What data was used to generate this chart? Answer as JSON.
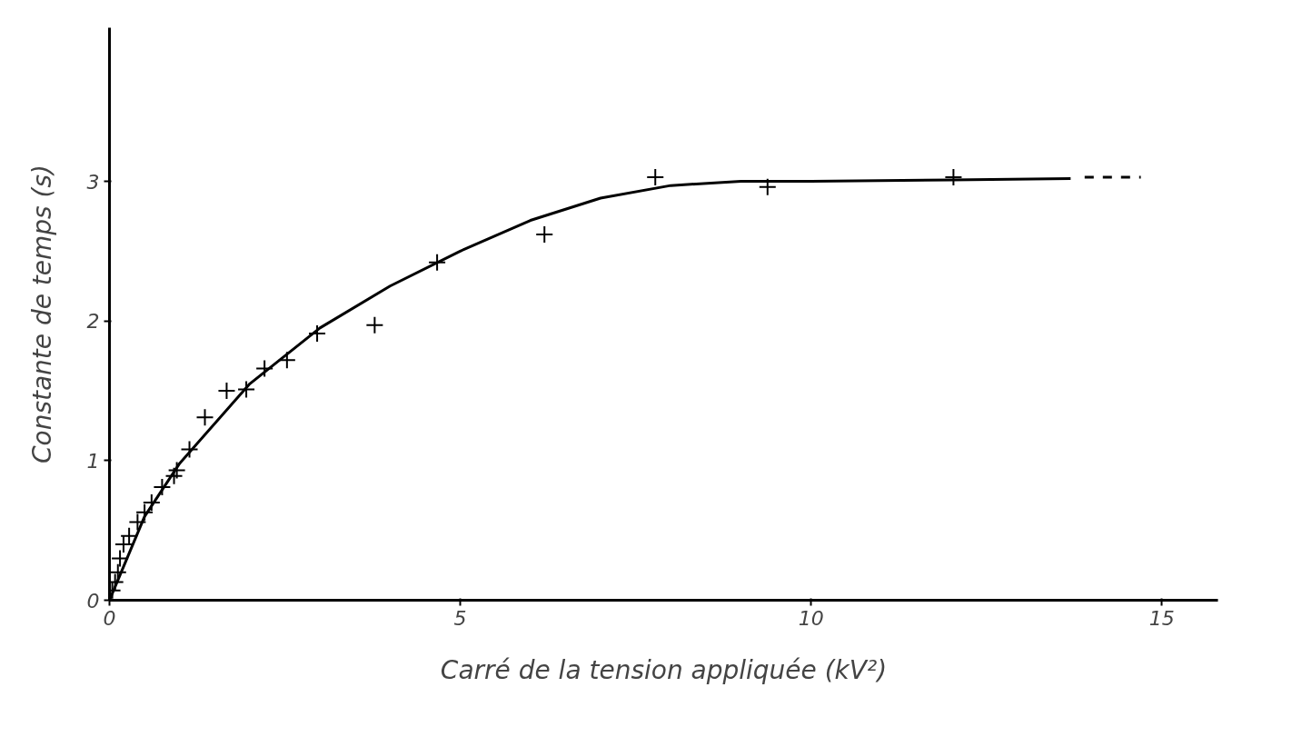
{
  "chart_data": {
    "type": "scatter",
    "xlabel": "Carré de la tension appliquée (kV²)",
    "ylabel": "Constante de temps (s)",
    "xlim": [
      0,
      15.8
    ],
    "ylim": [
      0,
      4.1
    ],
    "xticks": [
      0,
      5,
      10,
      15
    ],
    "yticks": [
      0,
      1,
      2,
      3
    ],
    "grid": false,
    "series": [
      {
        "marker": "cross",
        "color": "#000000",
        "x": [
          0.04,
          0.08,
          0.12,
          0.15,
          0.2,
          0.28,
          0.4,
          0.5,
          0.6,
          0.75,
          0.92,
          0.96,
          1.14,
          1.36,
          1.67,
          1.95,
          2.21,
          2.53,
          2.96,
          3.78,
          4.67,
          6.2,
          7.78,
          9.38,
          12.03
        ],
        "values": [
          0.07,
          0.13,
          0.2,
          0.3,
          0.4,
          0.46,
          0.56,
          0.63,
          0.7,
          0.81,
          0.89,
          0.93,
          1.08,
          1.31,
          1.5,
          1.51,
          1.66,
          1.72,
          1.91,
          1.97,
          2.42,
          2.62,
          3.03,
          2.96,
          3.03
        ]
      },
      {
        "type": "line",
        "line_style": "solid",
        "color": "#000000",
        "x": [
          0,
          0.5,
          1,
          2,
          3,
          4,
          5,
          6,
          7,
          8,
          9,
          10,
          12,
          13.7
        ],
        "values": [
          0,
          0.6,
          0.98,
          1.55,
          1.95,
          2.25,
          2.5,
          2.72,
          2.88,
          2.97,
          3.0,
          3.0,
          3.01,
          3.02
        ]
      },
      {
        "type": "line",
        "line_style": "dashed",
        "color": "#000000",
        "x": [
          13.9,
          14.7
        ],
        "values": [
          3.03,
          3.03
        ]
      }
    ]
  }
}
